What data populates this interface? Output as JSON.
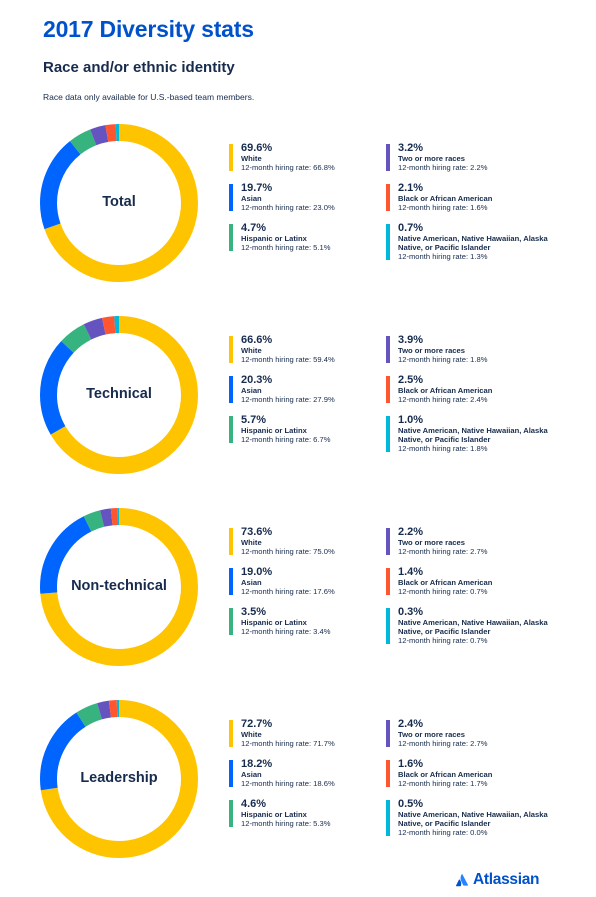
{
  "title": "2017 Diversity stats",
  "subtitle": "Race and/or ethnic identity",
  "note": "Race data only available for U.S.-based team members.",
  "brand": "Atlassian",
  "colors": {
    "White": "#ffc400",
    "Asian": "#0065ff",
    "Hispanic or Latinx": "#36b37e",
    "Two or more races": "#6554c0",
    "Black or African American": "#ff5630",
    "Native American, Native Hawaiian, Alaska Native, or Pacific Islander": "#00b8d9"
  },
  "chart_data": [
    {
      "type": "pie",
      "label": "Total",
      "categories": [
        "White",
        "Asian",
        "Hispanic or Latinx",
        "Two or more races",
        "Black or African American",
        "Native American, Native Hawaiian, Alaska Native, or Pacific Islander"
      ],
      "values": [
        69.6,
        19.7,
        4.7,
        3.2,
        2.1,
        0.7
      ],
      "percent_labels": [
        "69.6%",
        "19.7%",
        "4.7%",
        "3.2%",
        "2.1%",
        "0.7%"
      ],
      "hiring_rates": [
        "12-month hiring rate: 66.8%",
        "12-month hiring rate: 23.0%",
        "12-month hiring rate: 5.1%",
        "12-month hiring rate: 2.2%",
        "12-month hiring rate: 1.6%",
        "12-month hiring rate: 1.3%"
      ]
    },
    {
      "type": "pie",
      "label": "Technical",
      "categories": [
        "White",
        "Asian",
        "Hispanic or Latinx",
        "Two or more races",
        "Black or African American",
        "Native American, Native Hawaiian, Alaska Native, or Pacific Islander"
      ],
      "values": [
        66.6,
        20.3,
        5.7,
        3.9,
        2.5,
        1.0
      ],
      "percent_labels": [
        "66.6%",
        "20.3%",
        "5.7%",
        "3.9%",
        "2.5%",
        "1.0%"
      ],
      "hiring_rates": [
        "12-month hiring rate: 59.4%",
        "12-month hiring rate: 27.9%",
        "12-month hiring rate: 6.7%",
        "12-month hiring rate: 1.8%",
        "12-month hiring rate: 2.4%",
        "12-month hiring rate: 1.8%"
      ]
    },
    {
      "type": "pie",
      "label": "Non-technical",
      "categories": [
        "White",
        "Asian",
        "Hispanic or Latinx",
        "Two or more races",
        "Black or African American",
        "Native American, Native Hawaiian, Alaska Native, or Pacific Islander"
      ],
      "values": [
        73.6,
        19.0,
        3.5,
        2.2,
        1.4,
        0.3
      ],
      "percent_labels": [
        "73.6%",
        "19.0%",
        "3.5%",
        "2.2%",
        "1.4%",
        "0.3%"
      ],
      "hiring_rates": [
        "12-month hiring rate: 75.0%",
        "12-month hiring rate: 17.6%",
        "12-month hiring rate: 3.4%",
        "12-month hiring rate: 2.7%",
        "12-month hiring rate: 0.7%",
        "12-month hiring rate: 0.7%"
      ]
    },
    {
      "type": "pie",
      "label": "Leadership",
      "categories": [
        "White",
        "Asian",
        "Hispanic or Latinx",
        "Two or more races",
        "Black or African American",
        "Native American, Native Hawaiian, Alaska Native, or Pacific Islander"
      ],
      "values": [
        72.7,
        18.2,
        4.6,
        2.4,
        1.6,
        0.5
      ],
      "percent_labels": [
        "72.7%",
        "18.2%",
        "4.6%",
        "2.4%",
        "1.6%",
        "0.5%"
      ],
      "hiring_rates": [
        "12-month hiring rate: 71.7%",
        "12-month hiring rate: 18.6%",
        "12-month hiring rate: 5.3%",
        "12-month hiring rate: 2.7%",
        "12-month hiring rate: 1.7%",
        "12-month hiring rate: 0.0%"
      ]
    }
  ]
}
